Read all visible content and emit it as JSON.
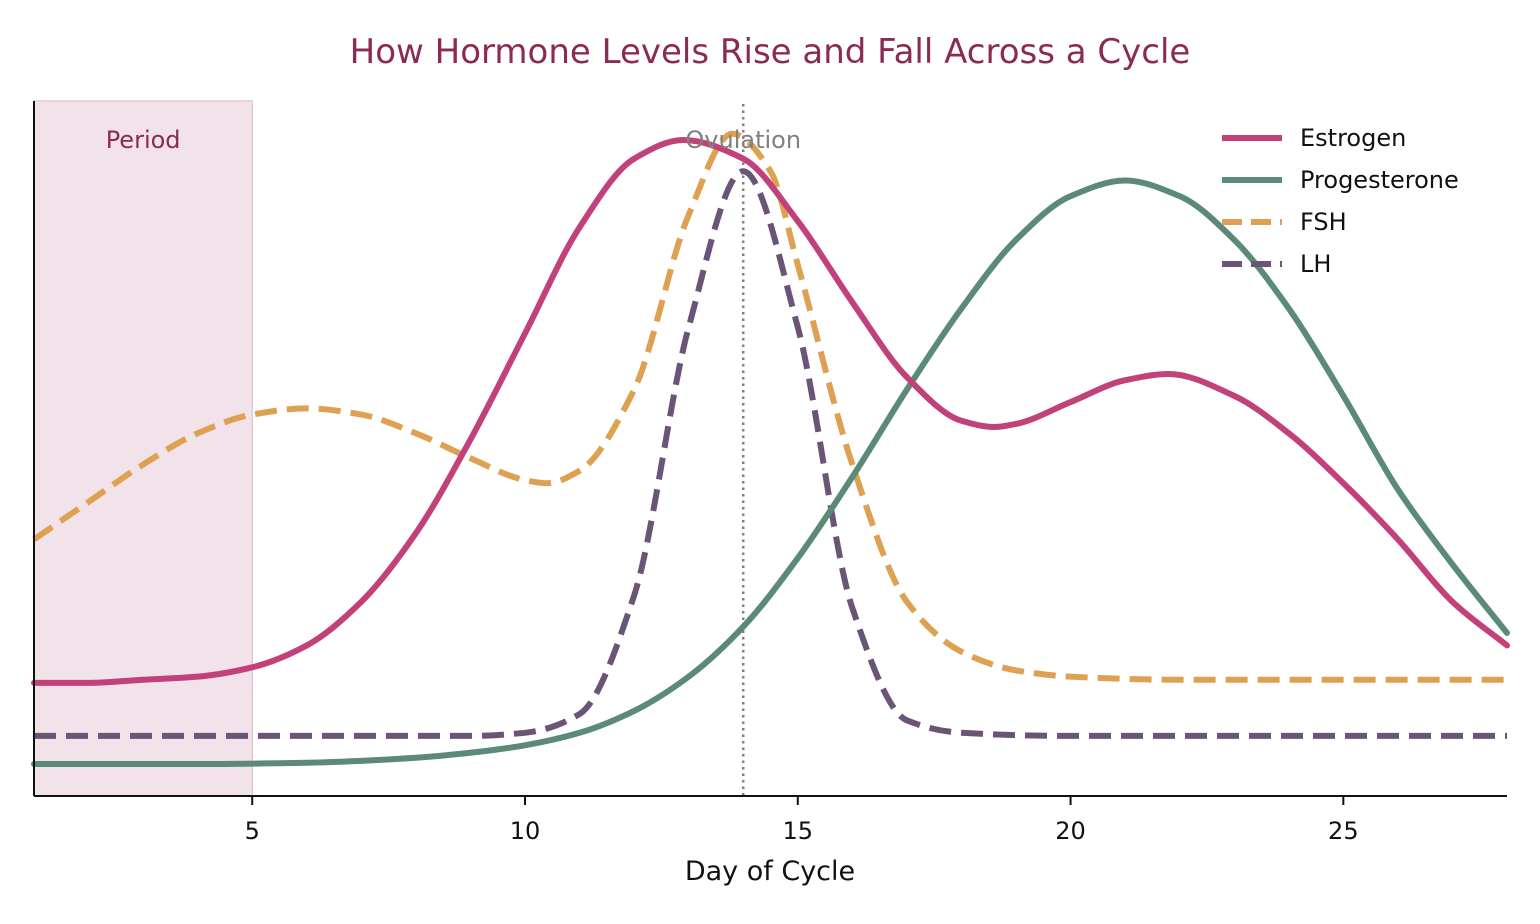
{
  "chart_data": {
    "type": "line",
    "title": "How Hormone Levels Rise and Fall Across a Cycle",
    "xlabel": "Day of Cycle",
    "ylabel": "",
    "xlim": [
      1,
      28
    ],
    "ylim": [
      0,
      1
    ],
    "x_ticks": [
      5,
      10,
      15,
      20,
      25
    ],
    "grid": false,
    "legend_position": "top-right",
    "colors": {
      "title": "#8b2a55",
      "estrogen": "#c2417a",
      "progesterone": "#5b8a78",
      "fsh": "#dea152",
      "lh": "#6b5577",
      "period_fill": "#f1e3e9",
      "period_text": "#8b2a55",
      "ovulation_line": "#808080",
      "ovulation_text": "#808080",
      "axis": "#111111"
    },
    "annotations": {
      "period": {
        "label": "Period",
        "x_start": 1,
        "x_end": 5
      },
      "ovulation": {
        "label": "Ovulation",
        "x": 14
      }
    },
    "series": [
      {
        "name": "Estrogen",
        "line_style": "solid",
        "x": [
          1,
          2,
          3,
          4,
          5,
          6,
          7,
          8,
          9,
          10,
          11,
          12,
          12.9,
          14,
          15,
          16,
          17,
          18,
          18.6,
          19,
          20,
          21,
          21.8,
          23,
          24,
          25,
          26,
          27,
          28
        ],
        "values": [
          0.13,
          0.13,
          0.135,
          0.14,
          0.155,
          0.19,
          0.26,
          0.37,
          0.52,
          0.69,
          0.86,
          0.97,
          1.0,
          0.97,
          0.87,
          0.74,
          0.62,
          0.55,
          0.54,
          0.545,
          0.58,
          0.615,
          0.625,
          0.59,
          0.53,
          0.45,
          0.36,
          0.26,
          0.19
        ]
      },
      {
        "name": "Progesterone",
        "line_style": "solid",
        "x": [
          1,
          4,
          6,
          8,
          9,
          10,
          11,
          12,
          13,
          14,
          15,
          16,
          17,
          18,
          19,
          20,
          21,
          22,
          23,
          24,
          25,
          26,
          27,
          28
        ],
        "values": [
          0.0,
          0.0,
          0.002,
          0.01,
          0.018,
          0.03,
          0.05,
          0.085,
          0.14,
          0.22,
          0.33,
          0.46,
          0.6,
          0.73,
          0.84,
          0.91,
          0.935,
          0.91,
          0.84,
          0.73,
          0.59,
          0.44,
          0.32,
          0.21
        ]
      },
      {
        "name": "FSH",
        "line_style": "dashed",
        "x": [
          1,
          2,
          3,
          4,
          5,
          6,
          7,
          8,
          9,
          10,
          10.4,
          11,
          12,
          13,
          13.8,
          14.5,
          15,
          16,
          17,
          18,
          19,
          20,
          22,
          25,
          28
        ],
        "values": [
          0.36,
          0.42,
          0.48,
          0.53,
          0.56,
          0.57,
          0.56,
          0.53,
          0.49,
          0.455,
          0.45,
          0.47,
          0.6,
          0.88,
          1.01,
          0.95,
          0.8,
          0.48,
          0.26,
          0.18,
          0.15,
          0.14,
          0.135,
          0.135,
          0.135
        ]
      },
      {
        "name": "LH",
        "line_style": "dashed",
        "x": [
          1,
          5,
          9,
          10,
          11,
          12,
          13,
          14,
          15,
          16,
          17,
          18,
          20,
          25,
          28
        ],
        "values": [
          0.045,
          0.045,
          0.045,
          0.05,
          0.08,
          0.27,
          0.7,
          0.95,
          0.7,
          0.25,
          0.07,
          0.05,
          0.045,
          0.045,
          0.045
        ]
      }
    ]
  }
}
